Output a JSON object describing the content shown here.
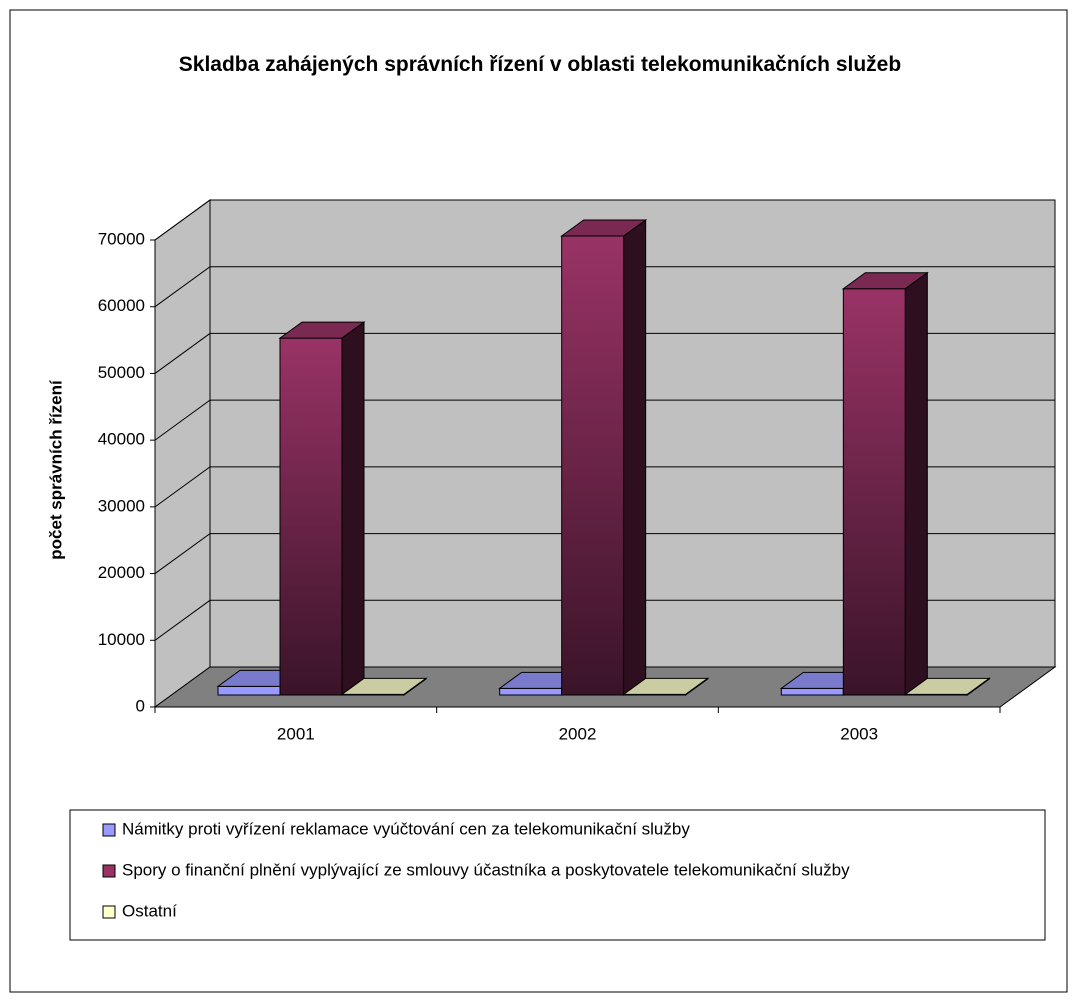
{
  "chart_data": {
    "type": "bar3d",
    "title": "Skladba zahájených správních řízení v oblasti telekomunikačních služeb",
    "y_label": "počet správních řízení",
    "categories": [
      "2001",
      "2002",
      "2003"
    ],
    "series": [
      {
        "name": "Námitky proti vyřízení reklamace vyúčtování cen za telekomunikační služby",
        "color": "#9999ff",
        "values": [
          1300,
          1000,
          1000
        ]
      },
      {
        "name": "Spory o finanční plnění vyplývající ze smlouvy účastníka a poskytovatele telekomunikační služby",
        "color": "#993366",
        "values": [
          53500,
          68800,
          60900
        ]
      },
      {
        "name": "Ostatní",
        "color": "#ffffcc",
        "values": [
          100,
          100,
          100
        ]
      }
    ],
    "ylim": [
      0,
      70000
    ],
    "yticks": [
      0,
      10000,
      20000,
      30000,
      40000,
      50000,
      60000,
      70000
    ],
    "grid": true
  }
}
